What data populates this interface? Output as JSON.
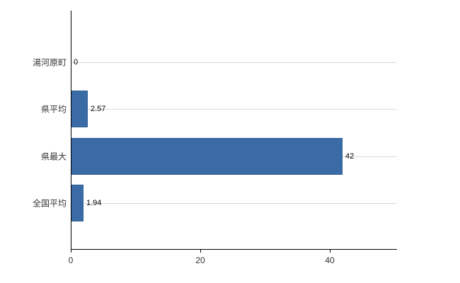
{
  "chart_data": {
    "type": "bar",
    "orientation": "horizontal",
    "title": "",
    "xlabel": "",
    "ylabel": "",
    "categories": [
      "湯河原町",
      "県平均",
      "県最大",
      "全国平均"
    ],
    "values": [
      0,
      2.57,
      42,
      1.94
    ],
    "value_labels": [
      "0",
      "2.57",
      "42",
      "1.94"
    ],
    "xlim": [
      0,
      50.3
    ],
    "x_ticks": [
      0,
      20,
      40
    ],
    "x_tick_labels": [
      "0",
      "20",
      "40"
    ],
    "grid": "horizontal-category-lines",
    "legend": "none",
    "colors": {
      "bar_fill": "#3A6BA6",
      "bar_border": "#2F5E92",
      "gridline": "#d9d9d9",
      "axis": "#000000",
      "background": "#ffffff"
    }
  }
}
